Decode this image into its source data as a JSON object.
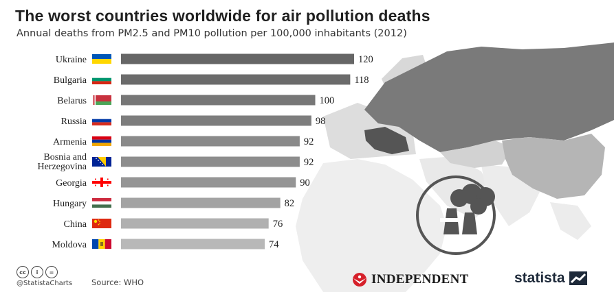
{
  "header": {
    "title": "The worst countries worldwide for air pollution deaths",
    "subtitle": "Annual deaths from PM2.5 and PM10 pollution per 100,000 inhabitants (2012)"
  },
  "chart_data": {
    "type": "bar",
    "orientation": "horizontal",
    "categories": [
      "Ukraine",
      "Bulgaria",
      "Belarus",
      "Russia",
      "Armenia",
      "Bosnia and Herzegovina",
      "Georgia",
      "Hungary",
      "China",
      "Moldova"
    ],
    "category_lines": [
      [
        "Ukraine"
      ],
      [
        "Bulgaria"
      ],
      [
        "Belarus"
      ],
      [
        "Russia"
      ],
      [
        "Armenia"
      ],
      [
        "Bosnia and",
        "Herzegovina"
      ],
      [
        "Georgia"
      ],
      [
        "Hungary"
      ],
      [
        "China"
      ],
      [
        "Moldova"
      ]
    ],
    "values": [
      120,
      118,
      100,
      98,
      92,
      92,
      90,
      82,
      76,
      74
    ],
    "bar_colors": [
      "#666666",
      "#6b6b6b",
      "#777777",
      "#7d7d7d",
      "#8a8a8a",
      "#8d8d8d",
      "#959595",
      "#a3a3a3",
      "#b0b0b0",
      "#b8b8b8"
    ],
    "flags": [
      "ukraine",
      "bulgaria",
      "belarus",
      "russia",
      "armenia",
      "bosnia",
      "georgia",
      "hungary",
      "china",
      "moldova"
    ],
    "xlim": [
      0,
      120
    ],
    "grid": false,
    "legend": "none"
  },
  "footer": {
    "cc_icons": [
      "cc",
      "i",
      "="
    ],
    "handle": "@StatistaCharts",
    "source": "Source: WHO",
    "partner": "INDEPENDENT",
    "brand": "statista"
  }
}
